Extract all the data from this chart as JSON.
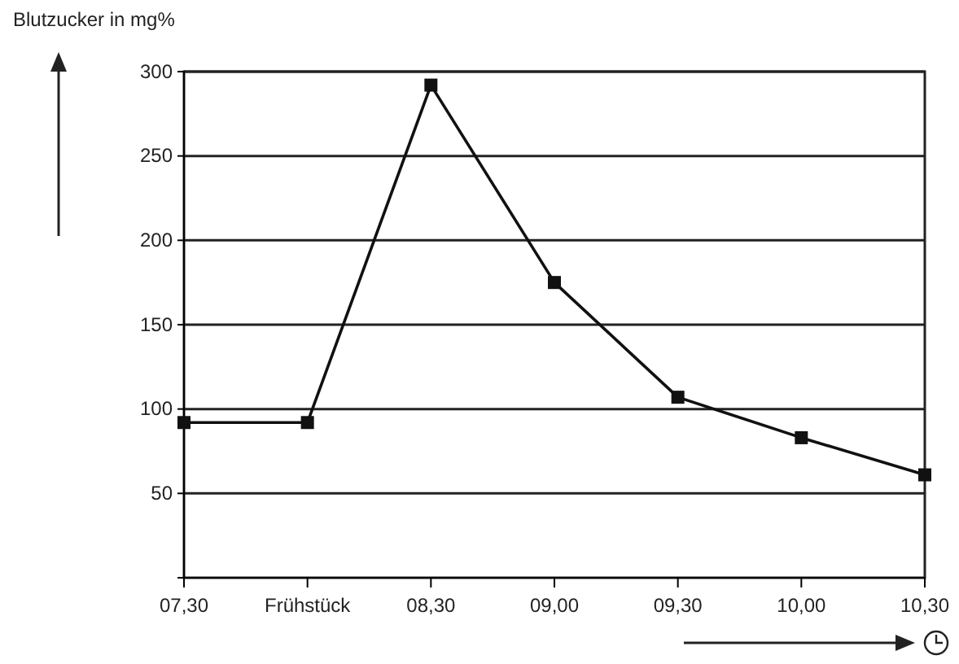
{
  "chart_data": {
    "type": "line",
    "ylabel": "Blutzucker in mg%",
    "categories": [
      "07,30",
      "Frühstück",
      "08,30",
      "09,00",
      "09,30",
      "10,00",
      "10,30"
    ],
    "series": [
      {
        "color": "#111111",
        "values": [
          92,
          92,
          292,
          175,
          107,
          83,
          61
        ]
      }
    ],
    "ylim": [
      0,
      300
    ],
    "yticks": [
      50,
      100,
      150,
      200,
      250,
      300
    ],
    "grid": "y",
    "marker": "square",
    "line_style": "solid"
  }
}
